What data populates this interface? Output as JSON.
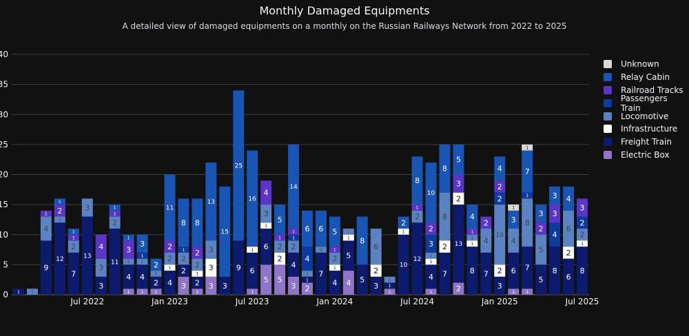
{
  "chart_data": {
    "type": "bar",
    "stacked": true,
    "title": "Monthly Damaged Equipments",
    "subtitle": "A detailed view of damaged equipments on a monthly on the Russian Railways Network from 2022 to 2025",
    "xlabel": "",
    "ylabel": "",
    "ylim": [
      0,
      40
    ],
    "y_ticks": [
      "0",
      "5",
      "10",
      "15",
      "20",
      "25",
      "30",
      "35",
      "40"
    ],
    "x_tick_labels": [
      "Jul 2022",
      "Jan 2023",
      "Jul 2023",
      "Jan 2024",
      "Jul 2024",
      "Jan 2025",
      "Jul 2025"
    ],
    "x_tick_months": [
      5,
      11,
      17,
      23,
      29,
      35,
      41
    ],
    "legend_position": "right",
    "categories": [
      "Feb 2022",
      "Mar 2022",
      "Apr 2022",
      "May 2022",
      "Jun 2022",
      "Jul 2022",
      "Aug 2022",
      "Sep 2022",
      "Oct 2022",
      "Nov 2022",
      "Dec 2022",
      "Jan 2023",
      "Feb 2023",
      "Mar 2023",
      "Apr 2023",
      "May 2023",
      "Jun 2023",
      "Jul 2023",
      "Aug 2023",
      "Sep 2023",
      "Oct 2023",
      "Nov 2023",
      "Dec 2023",
      "Jan 2024",
      "Feb 2024",
      "Mar 2024",
      "Apr 2024",
      "May 2024",
      "Jun 2024",
      "Jul 2024",
      "Aug 2024",
      "Sep 2024",
      "Oct 2024",
      "Nov 2024",
      "Dec 2024",
      "Jan 2025",
      "Feb 2025",
      "Mar 2025",
      "Apr 2025",
      "May 2025",
      "Jun 2025",
      "Jul 2025"
    ],
    "series": [
      {
        "name": "Electric Box",
        "color": "#8f75c8",
        "values": [
          0,
          0,
          0,
          0,
          0,
          0,
          0,
          0,
          1,
          1,
          1,
          0,
          3,
          1,
          3,
          0,
          0,
          1,
          5,
          5,
          3,
          2,
          0,
          0,
          4,
          0,
          0,
          1,
          0,
          0,
          1,
          0,
          2,
          0,
          0,
          0,
          1,
          1,
          0,
          0,
          0,
          0
        ]
      },
      {
        "name": "Freight Train",
        "color": "#0c1b6e",
        "values": [
          1,
          0,
          9,
          12,
          7,
          13,
          3,
          11,
          4,
          4,
          2,
          4,
          2,
          2,
          0,
          3,
          9,
          6,
          6,
          0,
          4,
          1,
          7,
          4,
          5,
          5,
          3,
          1,
          10,
          12,
          4,
          7,
          13,
          8,
          7,
          3,
          6,
          7,
          5,
          8,
          6,
          8
        ]
      },
      {
        "name": "Infrastructure",
        "color": "#ffffff",
        "values": [
          0,
          0,
          0,
          0,
          0,
          0,
          0,
          0,
          0,
          0,
          0,
          1,
          0,
          1,
          3,
          0,
          0,
          1,
          1,
          2,
          0,
          0,
          0,
          1,
          1,
          0,
          2,
          0,
          1,
          0,
          1,
          2,
          2,
          1,
          0,
          2,
          0,
          0,
          0,
          0,
          2,
          1
        ]
      },
      {
        "name": "Locomotive",
        "color": "#5b82c2",
        "values": [
          0,
          1,
          4,
          1,
          2,
          3,
          3,
          2,
          1,
          1,
          1,
          2,
          2,
          2,
          3,
          0,
          0,
          0,
          3,
          2,
          2,
          1,
          1,
          2,
          1,
          0,
          6,
          1,
          0,
          2,
          1,
          8,
          0,
          1,
          4,
          10,
          4,
          8,
          5,
          0,
          6,
          2
        ]
      },
      {
        "name": "Passengers Train",
        "color": "#0c3a9e",
        "values": [
          0,
          0,
          0,
          0,
          0,
          0,
          0,
          0,
          0,
          1,
          0,
          0,
          1,
          0,
          0,
          0,
          0,
          0,
          0,
          0,
          1,
          4,
          0,
          0,
          0,
          0,
          0,
          0,
          0,
          0,
          3,
          0,
          0,
          0,
          0,
          2,
          0,
          1,
          0,
          4,
          0,
          2
        ]
      },
      {
        "name": "Railroad Tracks",
        "color": "#5b35c8",
        "values": [
          0,
          0,
          1,
          2,
          1,
          0,
          4,
          1,
          3,
          0,
          0,
          2,
          0,
          2,
          0,
          0,
          0,
          0,
          4,
          1,
          1,
          0,
          0,
          1,
          0,
          0,
          0,
          0,
          0,
          1,
          2,
          0,
          3,
          1,
          2,
          2,
          0,
          0,
          2,
          3,
          0,
          3
        ]
      },
      {
        "name": "Relay Cabin",
        "color": "#1855b5",
        "values": [
          0,
          0,
          0,
          1,
          1,
          0,
          0,
          1,
          1,
          3,
          2,
          11,
          8,
          8,
          13,
          15,
          25,
          16,
          0,
          5,
          14,
          6,
          6,
          5,
          0,
          8,
          0,
          0,
          2,
          8,
          10,
          8,
          5,
          4,
          0,
          4,
          3,
          7,
          3,
          3,
          4,
          0
        ]
      },
      {
        "name": "Unknown",
        "color": "#d9d9d9",
        "values": [
          0,
          0,
          0,
          0,
          0,
          0,
          0,
          0,
          0,
          0,
          0,
          0,
          0,
          0,
          0,
          0,
          0,
          0,
          0,
          0,
          0,
          0,
          0,
          0,
          0,
          0,
          0,
          0,
          0,
          0,
          0,
          0,
          0,
          0,
          0,
          0,
          1,
          1,
          0,
          0,
          0,
          0
        ]
      }
    ]
  }
}
